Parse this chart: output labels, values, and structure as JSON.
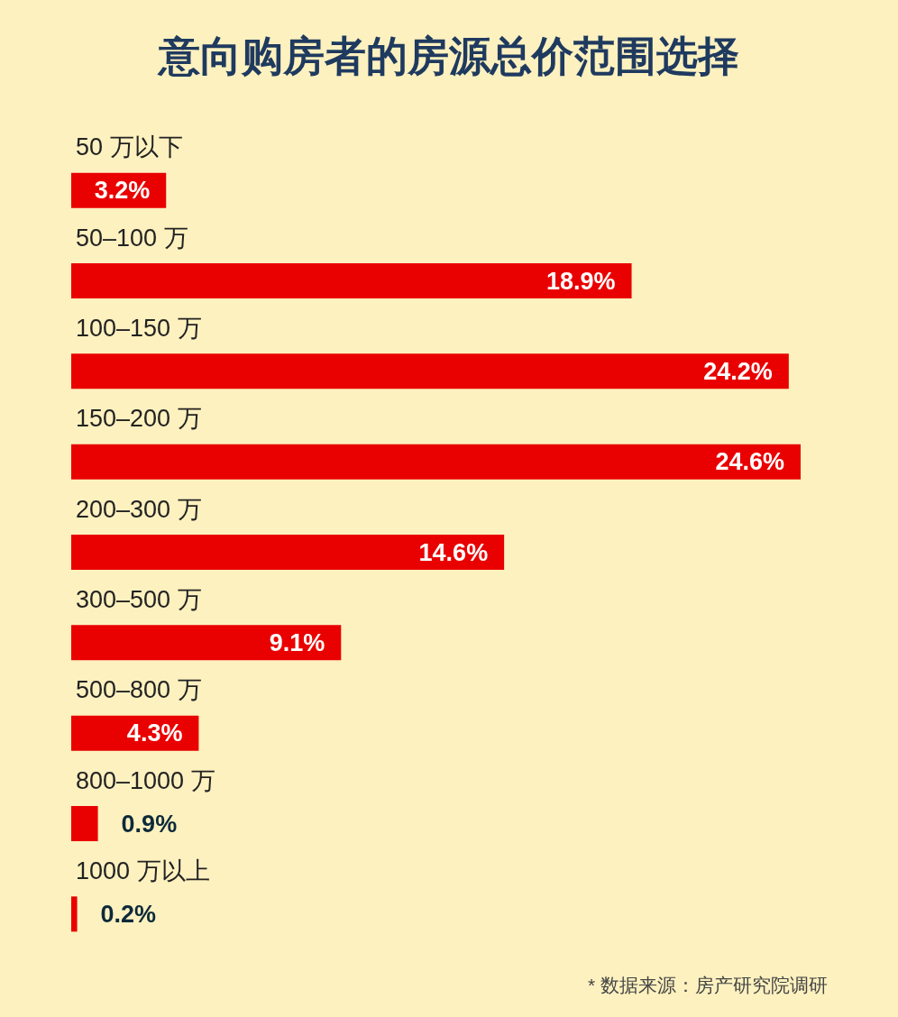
{
  "chart_data": {
    "type": "bar",
    "orientation": "horizontal",
    "title": "意向购房者的房源总价范围选择",
    "categories": [
      "50 万以下",
      "50–100 万",
      "100–150 万",
      "150–200 万",
      "200–300 万",
      "300–500 万",
      "500–800 万",
      "800–1000 万",
      "1000 万以上"
    ],
    "values": [
      3.2,
      18.9,
      24.2,
      24.6,
      14.6,
      9.1,
      4.3,
      0.9,
      0.2
    ],
    "value_labels": [
      "3.2%",
      "18.9%",
      "24.2%",
      "24.6%",
      "14.6%",
      "9.1%",
      "4.3%",
      "0.9%",
      "0.2%"
    ],
    "color": "#e90000",
    "annotations": [
      "* 数据来源：房产研究院调研"
    ]
  }
}
